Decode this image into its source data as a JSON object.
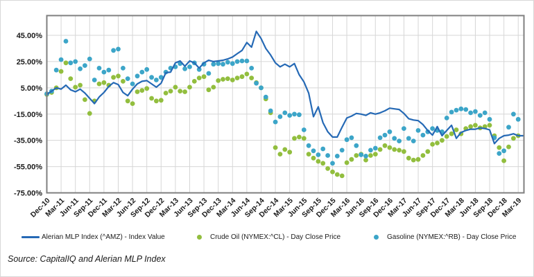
{
  "source_note": "Source: CapitalIQ and Alerian MLP Index",
  "colors": {
    "amz_line": "#2569B5",
    "crude_dot": "#92BE3E",
    "gasoline_dot": "#3CA5C8",
    "grid": "#D6D6D6",
    "plot_border": "#7F7F7F",
    "text": "#1A1A1A"
  },
  "chart_data": {
    "type": "line-scatter-combo",
    "title": "",
    "xlabel": "",
    "ylabel": "",
    "grid": true,
    "legend_position": "bottom",
    "ylim": [
      -75,
      60
    ],
    "y_ticks": [
      {
        "value": 45,
        "label": "45.00%"
      },
      {
        "value": 25,
        "label": "25.00%"
      },
      {
        "value": 5,
        "label": "5.00%"
      },
      {
        "value": -15,
        "label": "-15.00%"
      },
      {
        "value": -35,
        "label": "-35.00%"
      },
      {
        "value": -55,
        "label": "-55.00%"
      },
      {
        "value": -75,
        "label": "-75.00%"
      }
    ],
    "x_tick_labels": [
      "Dec-10",
      "Mar-11",
      "Jun-11",
      "Sep-11",
      "Dec-11",
      "Mar-12",
      "Jun-12",
      "Sep-12",
      "Dec-12",
      "Mar-13",
      "Jun-13",
      "Sep-13",
      "Dec-13",
      "Mar-14",
      "Jun-14",
      "Sep-14",
      "Dec-14",
      "Mar-15",
      "Jun-15",
      "Sep-15",
      "Dec-15",
      "Mar-16",
      "Jun-16",
      "Sep-16",
      "Dec-16",
      "Mar-17",
      "Jun-17",
      "Sep-17",
      "Dec-17",
      "Mar-18",
      "Jun-18",
      "Sep-18",
      "Dec-18",
      "Mar-19"
    ],
    "months": [
      "Dec-10",
      "Jan-11",
      "Feb-11",
      "Mar-11",
      "Apr-11",
      "May-11",
      "Jun-11",
      "Jul-11",
      "Aug-11",
      "Sep-11",
      "Oct-11",
      "Nov-11",
      "Dec-11",
      "Jan-12",
      "Feb-12",
      "Mar-12",
      "Apr-12",
      "May-12",
      "Jun-12",
      "Jul-12",
      "Aug-12",
      "Sep-12",
      "Oct-12",
      "Nov-12",
      "Dec-12",
      "Jan-13",
      "Feb-13",
      "Mar-13",
      "Apr-13",
      "May-13",
      "Jun-13",
      "Jul-13",
      "Aug-13",
      "Sep-13",
      "Oct-13",
      "Nov-13",
      "Dec-13",
      "Jan-14",
      "Feb-14",
      "Mar-14",
      "Apr-14",
      "May-14",
      "Jun-14",
      "Jul-14",
      "Aug-14",
      "Sep-14",
      "Oct-14",
      "Nov-14",
      "Dec-14",
      "Jan-15",
      "Feb-15",
      "Mar-15",
      "Apr-15",
      "May-15",
      "Jun-15",
      "Jul-15",
      "Aug-15",
      "Sep-15",
      "Oct-15",
      "Nov-15",
      "Dec-15",
      "Jan-16",
      "Feb-16",
      "Mar-16",
      "Apr-16",
      "May-16",
      "Jun-16",
      "Jul-16",
      "Aug-16",
      "Sep-16",
      "Oct-16",
      "Nov-16",
      "Dec-16",
      "Jan-17",
      "Feb-17",
      "Mar-17",
      "Apr-17",
      "May-17",
      "Jun-17",
      "Jul-17",
      "Aug-17",
      "Sep-17",
      "Oct-17",
      "Nov-17",
      "Dec-17",
      "Jan-18",
      "Feb-18",
      "Mar-18",
      "Apr-18",
      "May-18",
      "Jun-18",
      "Jul-18",
      "Aug-18",
      "Sep-18",
      "Oct-18",
      "Nov-18",
      "Dec-18",
      "Jan-19",
      "Feb-19",
      "Mar-19"
    ],
    "unit": "percent change since Dec-10",
    "series": [
      {
        "name": "Alerian MLP Index (^AMZ) - Index Value",
        "style": "line",
        "color": "#2569B5",
        "values": [
          0,
          2.5,
          5,
          4,
          7,
          3.5,
          2,
          4,
          1,
          -3,
          -7,
          -2,
          1.5,
          6,
          9,
          7.5,
          1.5,
          -1,
          4,
          8,
          10,
          10.5,
          8,
          5.5,
          8.5,
          16.5,
          17,
          24,
          25.5,
          21.5,
          25.5,
          24,
          20,
          24,
          26,
          25,
          25.5,
          26,
          27,
          28.5,
          31,
          33.5,
          39.5,
          36,
          48,
          42.5,
          35,
          30,
          24,
          21,
          23,
          21,
          23.5,
          15,
          9.5,
          1,
          -17,
          -9.5,
          -21.5,
          -28.5,
          -32.5,
          -32.5,
          -25,
          -18,
          -16.5,
          -14.5,
          -15,
          -16,
          -14,
          -15,
          -14,
          -12.5,
          -10.5,
          -11,
          -11.5,
          -14.5,
          -18.5,
          -19.5,
          -20,
          -23,
          -27.5,
          -31,
          -24.5,
          -31.5,
          -27.5,
          -23.5,
          -33.5,
          -29,
          -27.5,
          -26.5,
          -26.5,
          -25.5,
          -26,
          -27,
          -37.5,
          -33.5,
          -31.5,
          -31,
          -30,
          -31.5
        ]
      },
      {
        "name": "Crude Oil (NYMEX:^CL) - Day Close Price",
        "style": "scatter",
        "color": "#92BE3E",
        "values": [
          0,
          1.5,
          5,
          17.5,
          24,
          12,
          5.5,
          7,
          -4,
          -14.5,
          -5,
          8,
          9,
          7,
          13,
          14,
          10,
          -5,
          -7,
          2,
          3,
          4.5,
          -3,
          -5,
          -4.5,
          1,
          2.5,
          5.5,
          2.5,
          2,
          5.5,
          10,
          12.5,
          13.5,
          3.5,
          5.5,
          10.5,
          11.5,
          12,
          11,
          12.5,
          13.5,
          15.5,
          12.5,
          9,
          5,
          -3.5,
          -14,
          -40.5,
          -45.5,
          -42,
          -44,
          -33.5,
          -32.5,
          -33.5,
          -45.5,
          -48.5,
          -51,
          -52.5,
          -56.5,
          -59,
          -61,
          -62,
          -52,
          -49.5,
          -46.5,
          -45.5,
          -50,
          -46.5,
          -45.5,
          -42,
          -39,
          -40.5,
          -42,
          -42.5,
          -43.5,
          -48.5,
          -50,
          -49.5,
          -46.5,
          -43.5,
          -38,
          -37,
          -35,
          -32,
          -30,
          -27,
          -30,
          -26,
          -24.5,
          -23.5,
          -25.5,
          -24.5,
          -23.5,
          -31.5,
          -40.5,
          -50.5,
          -40,
          -33.5,
          -31.5
        ]
      },
      {
        "name": "Gasoline (NYMEX:^RB) - Day Close Price",
        "style": "scatter",
        "color": "#3CA5C8",
        "values": [
          0.5,
          2.5,
          18.5,
          26.5,
          40.5,
          24,
          25,
          19.5,
          22,
          27,
          11,
          20,
          17,
          18.5,
          33.5,
          34.5,
          20,
          12,
          8,
          14,
          17,
          19,
          13,
          11,
          13,
          17,
          20,
          21,
          23.5,
          19.5,
          21,
          24,
          19,
          23,
          16,
          23,
          23.5,
          23,
          24.5,
          23.5,
          25,
          25.5,
          25.5,
          20,
          8.5,
          5,
          -2,
          -12.5,
          -21,
          -17,
          -14,
          -16,
          -15,
          -15.5,
          -27,
          -39,
          -43,
          -46,
          -41.5,
          -46.5,
          -52.5,
          -47,
          -42.5,
          -34.5,
          -33,
          -39,
          -46,
          -47,
          -42.5,
          -41,
          -33,
          -31,
          -28.5,
          -33.5,
          -35.5,
          -26,
          -33.5,
          -35.5,
          -27.5,
          -31,
          -28.5,
          -26,
          -27.5,
          -28.5,
          -18,
          -13.5,
          -12,
          -11,
          -11.5,
          -14,
          -13,
          -16,
          -14,
          -19,
          -33,
          -45,
          -43,
          -25,
          -15,
          -19
        ]
      }
    ]
  }
}
